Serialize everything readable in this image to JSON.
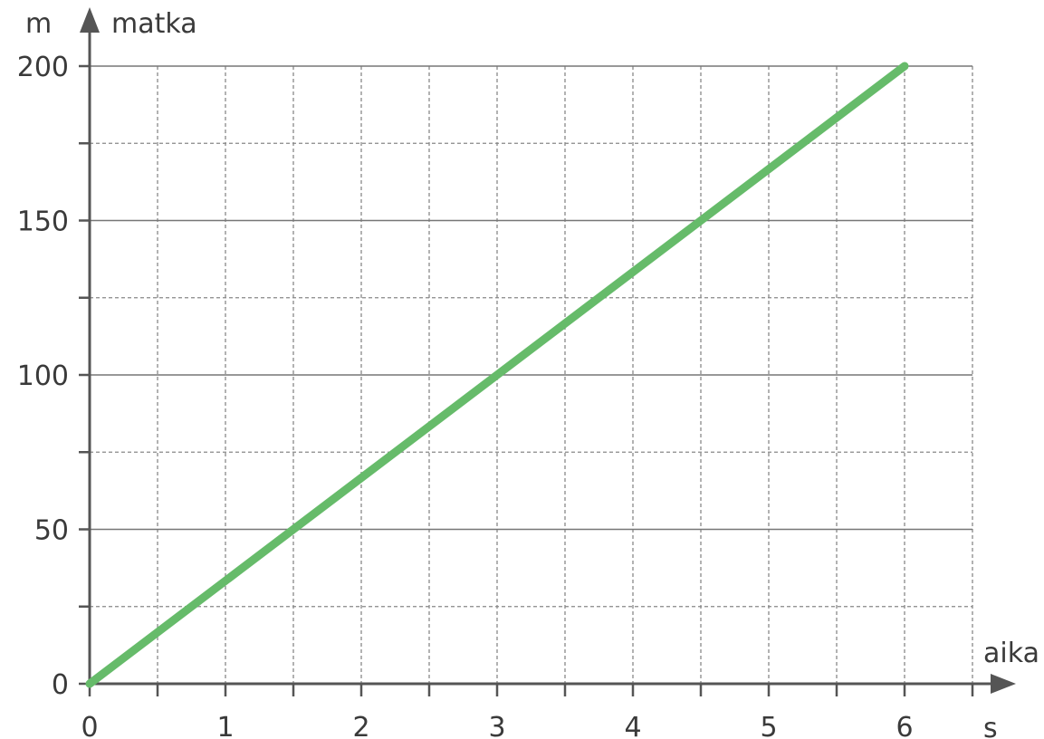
{
  "chart_data": {
    "type": "line",
    "y_unit": "m",
    "y_label": "matka",
    "x_label": "aika",
    "x_unit": "s",
    "xlim": [
      0,
      6.5
    ],
    "ylim": [
      0,
      200
    ],
    "x_major_ticks": [
      0,
      1,
      2,
      3,
      4,
      5,
      6
    ],
    "x_tick_labels": [
      "0",
      "1",
      "2",
      "3",
      "4",
      "5",
      "6"
    ],
    "x_minor_ticks": [
      0.5,
      1.5,
      2.5,
      3.5,
      4.5,
      5.5,
      6.5
    ],
    "y_major_ticks": [
      0,
      50,
      100,
      150,
      200
    ],
    "y_tick_labels": [
      "0",
      "50",
      "100",
      "150",
      "200"
    ],
    "y_minor_ticks": [
      25,
      75,
      125,
      175
    ],
    "grid": true,
    "series": [
      {
        "color": "#66bb6a",
        "x": [
          0,
          6
        ],
        "y": [
          0,
          200
        ]
      }
    ],
    "colors": {
      "axis": "#555555",
      "grid_major": "#777777",
      "grid_minor": "#888888"
    }
  }
}
